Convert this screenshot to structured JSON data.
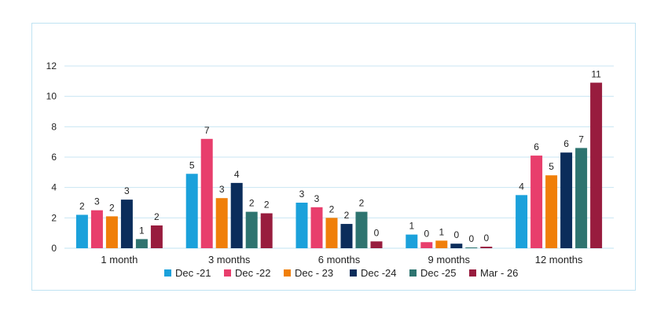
{
  "chart_data": {
    "type": "bar",
    "categories": [
      "1 month",
      "3 months",
      "6 months",
      "9 months",
      "12 months"
    ],
    "ylim": [
      0,
      12
    ],
    "yticks": [
      0,
      2,
      4,
      6,
      8,
      10,
      12
    ],
    "grid": true,
    "legend_position": "bottom",
    "series": [
      {
        "name": "Dec -21",
        "color": "#1ba1db",
        "values": [
          2.2,
          4.9,
          3.0,
          0.9,
          3.5
        ],
        "labels": [
          "2",
          "5",
          "3",
          "1",
          "4"
        ]
      },
      {
        "name": "Dec -22",
        "color": "#e83e6c",
        "values": [
          2.5,
          7.2,
          2.7,
          0.4,
          6.1
        ],
        "labels": [
          "3",
          "7",
          "3",
          "0",
          "6"
        ]
      },
      {
        "name": "Dec - 23",
        "color": "#f07f09",
        "values": [
          2.1,
          3.3,
          2.0,
          0.5,
          4.8
        ],
        "labels": [
          "2",
          "3",
          "2",
          "1",
          "5"
        ]
      },
      {
        "name": "Dec -24",
        "color": "#0b2d5b",
        "values": [
          3.2,
          4.3,
          1.6,
          0.3,
          6.3
        ],
        "labels": [
          "3",
          "4",
          "2",
          "0",
          "6"
        ]
      },
      {
        "name": "Dec -25",
        "color": "#2e7470",
        "values": [
          0.6,
          2.4,
          2.4,
          0.05,
          6.6
        ],
        "labels": [
          "1",
          "2",
          "2",
          "0",
          "7"
        ]
      },
      {
        "name": "Mar - 26",
        "color": "#981c3e",
        "values": [
          1.5,
          2.3,
          0.45,
          0.1,
          10.9
        ],
        "labels": [
          "2",
          "2",
          "0",
          "0",
          "11"
        ]
      }
    ],
    "colors": {
      "grid": "#c9e6f3",
      "axis": "#bfe3f2",
      "frame": "#bfe3f2"
    }
  }
}
